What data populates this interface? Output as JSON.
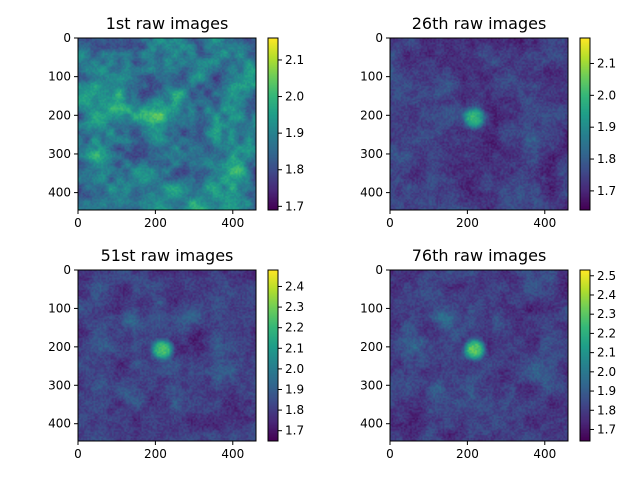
{
  "chart_data": [
    {
      "type": "heatmap",
      "title": "1st raw images",
      "xticks": [
        "0",
        "200",
        "400"
      ],
      "yticks": [
        "0",
        "100",
        "200",
        "300",
        "400"
      ],
      "xlim": [
        0,
        460
      ],
      "ylim": [
        445,
        0
      ],
      "colormap": "viridis",
      "colorbar_range": [
        1.69,
        2.16
      ],
      "colorbar_ticks": [
        "1.7",
        "1.8",
        "1.9",
        "2.0",
        "2.1"
      ],
      "colorbar_values": [
        1.7,
        1.8,
        1.9,
        2.0,
        2.1
      ],
      "bright_spot": false
    },
    {
      "type": "heatmap",
      "title": "26th raw images",
      "xticks": [
        "0",
        "200",
        "400"
      ],
      "yticks": [
        "0",
        "100",
        "200",
        "300",
        "400"
      ],
      "xlim": [
        0,
        460
      ],
      "ylim": [
        445,
        0
      ],
      "colormap": "viridis",
      "colorbar_range": [
        1.64,
        2.18
      ],
      "colorbar_ticks": [
        "1.7",
        "1.8",
        "1.9",
        "2.0",
        "2.1"
      ],
      "colorbar_values": [
        1.7,
        1.8,
        1.9,
        2.0,
        2.1
      ],
      "bright_spot": true
    },
    {
      "type": "heatmap",
      "title": "51st raw images",
      "xticks": [
        "0",
        "200",
        "400"
      ],
      "yticks": [
        "0",
        "100",
        "200",
        "300",
        "400"
      ],
      "xlim": [
        0,
        460
      ],
      "ylim": [
        445,
        0
      ],
      "colormap": "viridis",
      "colorbar_range": [
        1.65,
        2.48
      ],
      "colorbar_ticks": [
        "1.7",
        "1.8",
        "1.9",
        "2.0",
        "2.1",
        "2.2",
        "2.3",
        "2.4"
      ],
      "colorbar_values": [
        1.7,
        1.8,
        1.9,
        2.0,
        2.1,
        2.2,
        2.3,
        2.4
      ],
      "bright_spot": true
    },
    {
      "type": "heatmap",
      "title": "76th raw images",
      "xticks": [
        "0",
        "200",
        "400"
      ],
      "yticks": [
        "0",
        "100",
        "200",
        "300",
        "400"
      ],
      "xlim": [
        0,
        460
      ],
      "ylim": [
        445,
        0
      ],
      "colormap": "viridis",
      "colorbar_range": [
        1.64,
        2.53
      ],
      "colorbar_ticks": [
        "1.7",
        "1.8",
        "1.9",
        "2.0",
        "2.1",
        "2.2",
        "2.3",
        "2.4",
        "2.5"
      ],
      "colorbar_values": [
        1.7,
        1.8,
        1.9,
        2.0,
        2.1,
        2.2,
        2.3,
        2.4,
        2.5
      ],
      "bright_spot": true
    }
  ],
  "colors": {
    "viridis_low": "#440154",
    "viridis_mid": "#21918c",
    "viridis_high": "#fde725"
  }
}
